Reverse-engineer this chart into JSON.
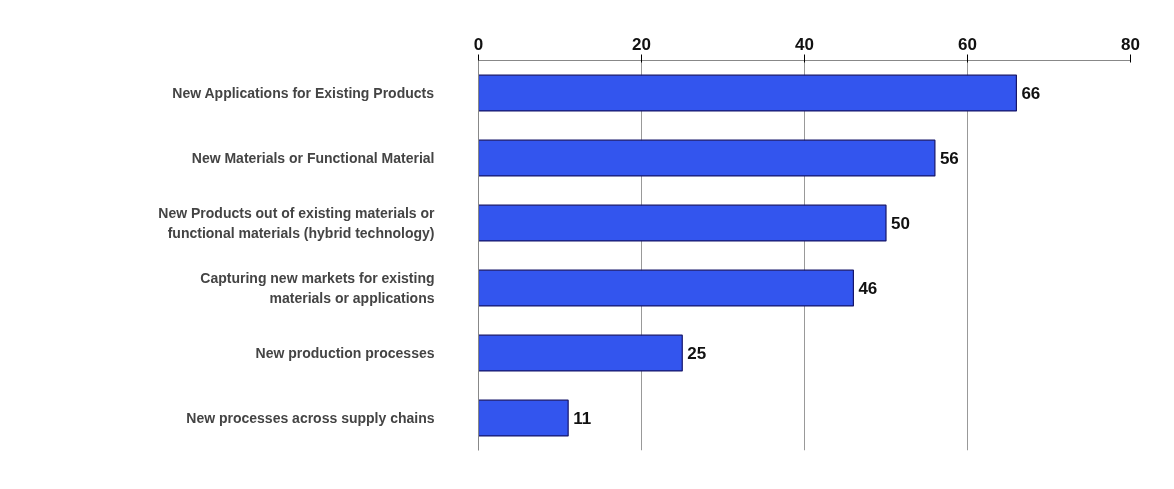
{
  "chart_data": {
    "type": "bar",
    "orientation": "horizontal",
    "categories": [
      "New Applications for Existing Products",
      "New Materials or Functional Material",
      "New Products out of existing materials or\nfunctional materials (hybrid technology)",
      "Capturing new markets for existing\nmaterials or applications",
      "New production processes",
      "New processes across supply chains"
    ],
    "values": [
      66,
      56,
      50,
      46,
      25,
      11
    ],
    "color": "#3355ee",
    "xlim": [
      0,
      80
    ],
    "xticks": [
      0,
      20,
      40,
      60,
      80
    ],
    "grid": "x",
    "data_labels": true
  }
}
